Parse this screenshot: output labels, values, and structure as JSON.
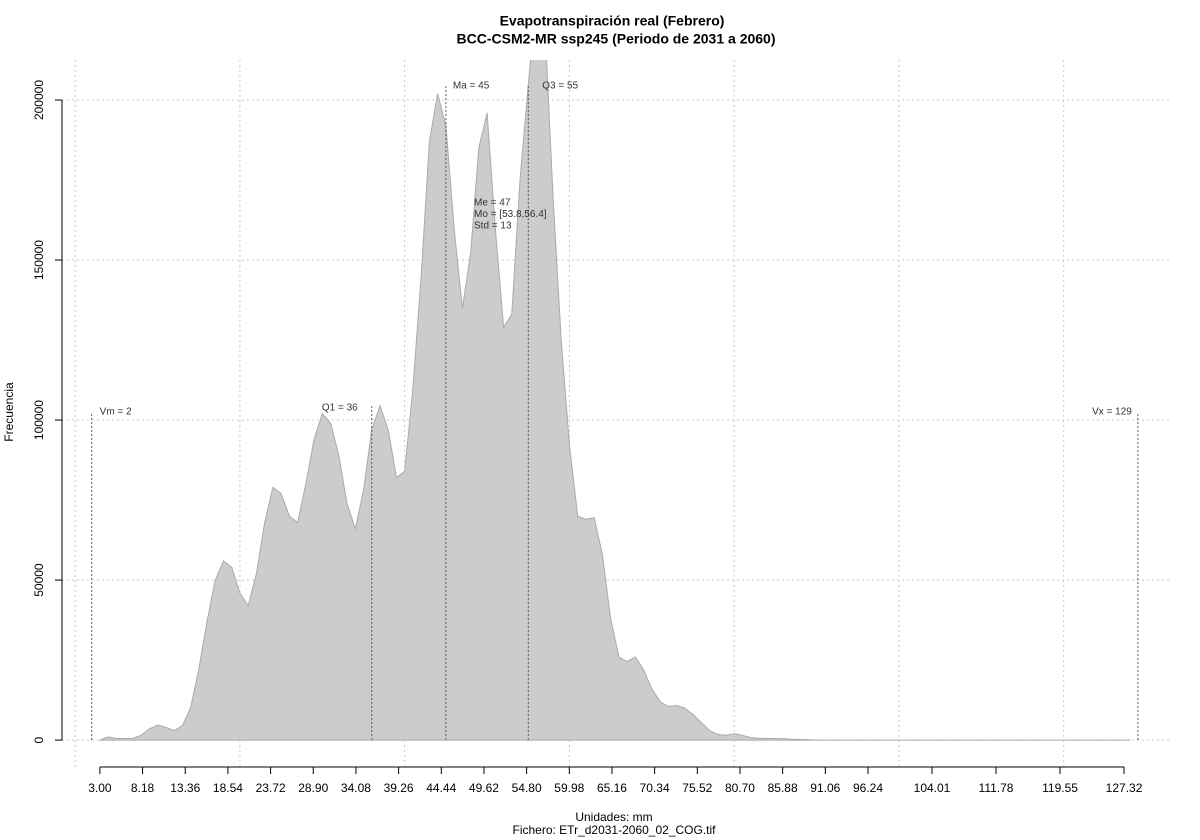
{
  "chart_data": {
    "type": "area",
    "title": "Evapotranspiración real (Febrero)",
    "subtitle": "BCC-CSM2-MR ssp245 (Periodo de 2031 a 2060)",
    "xlabel": "Unidades: mm",
    "caption": "Fichero: ETr_d2031-2060_02_COG.tif",
    "ylabel": "Frecuencia",
    "color": "#cccccc",
    "x": [
      3,
      4,
      5,
      6,
      7,
      8,
      9,
      10,
      11,
      12,
      13,
      14,
      15,
      16,
      17,
      18,
      19,
      20,
      21,
      22,
      23,
      24,
      25,
      26,
      27,
      28,
      29,
      30,
      31,
      32,
      33,
      34,
      35,
      36,
      37,
      38,
      39,
      40,
      41,
      42,
      43,
      44,
      45,
      46,
      47,
      48,
      49,
      50,
      51,
      52,
      53,
      54,
      55,
      56,
      57,
      58,
      59,
      60,
      61,
      62,
      63,
      64,
      65,
      66,
      67,
      68,
      69,
      70,
      71,
      72,
      73,
      74,
      75,
      76,
      77,
      78,
      79,
      80,
      81,
      82,
      83,
      84,
      85,
      86,
      87,
      88,
      89,
      90,
      128
    ],
    "values": [
      0,
      1000,
      500,
      500,
      600,
      1500,
      3500,
      4700,
      4000,
      3000,
      4500,
      10000,
      22000,
      37000,
      50000,
      56000,
      54000,
      46000,
      42000,
      52000,
      68000,
      79000,
      77000,
      70000,
      68000,
      80000,
      94000,
      102000,
      99000,
      89000,
      74000,
      66000,
      78000,
      97000,
      104500,
      97000,
      82000,
      84000,
      110000,
      145000,
      187000,
      202000,
      192000,
      160000,
      135000,
      152000,
      185000,
      196000,
      160000,
      129000,
      133000,
      175000,
      205000,
      232000,
      225000,
      170000,
      125000,
      92000,
      70000,
      69000,
      69500,
      58000,
      38000,
      26000,
      24500,
      26000,
      22000,
      16000,
      12000,
      10500,
      10800,
      10000,
      8000,
      5500,
      3000,
      1800,
      1500,
      2000,
      1500,
      800,
      600,
      500,
      500,
      400,
      300,
      200,
      100,
      0,
      0
    ],
    "xlim": [
      -1.6,
      132.9
    ],
    "ylim": [
      -8400,
      212500
    ],
    "xticks": [
      {
        "value": 3,
        "label": "3.00"
      },
      {
        "value": 8.18,
        "label": "8.18"
      },
      {
        "value": 13.36,
        "label": "13.36"
      },
      {
        "value": 18.54,
        "label": "18.54"
      },
      {
        "value": 23.72,
        "label": "23.72"
      },
      {
        "value": 28.9,
        "label": "28.90"
      },
      {
        "value": 34.08,
        "label": "34.08"
      },
      {
        "value": 39.26,
        "label": "39.26"
      },
      {
        "value": 44.44,
        "label": "44.44"
      },
      {
        "value": 49.62,
        "label": "49.62"
      },
      {
        "value": 54.8,
        "label": "54.80"
      },
      {
        "value": 59.98,
        "label": "59.98"
      },
      {
        "value": 65.16,
        "label": "65.16"
      },
      {
        "value": 70.34,
        "label": "70.34"
      },
      {
        "value": 75.52,
        "label": "75.52"
      },
      {
        "value": 80.7,
        "label": "80.70"
      },
      {
        "value": 85.88,
        "label": "85.88"
      },
      {
        "value": 91.06,
        "label": "91.06"
      },
      {
        "value": 96.24,
        "label": "96.24"
      },
      {
        "value": 104.01,
        "label": "104.01"
      },
      {
        "value": 111.78,
        "label": "111.78"
      },
      {
        "value": 119.55,
        "label": "119.55"
      },
      {
        "value": 127.32,
        "label": "127.32"
      }
    ],
    "yticks": [
      0,
      50000,
      100000,
      150000,
      200000
    ],
    "xgrid": [
      0,
      20,
      40,
      60,
      80,
      100,
      120
    ],
    "grid": true,
    "annotations": [
      {
        "label": "Vm = 2",
        "value": 2
      },
      {
        "label": "Q1 = 36",
        "value": 36
      },
      {
        "label": "Ma = 45",
        "value": 45
      },
      {
        "label": "Q3 = 55",
        "value": 55
      },
      {
        "label": "Vx = 129",
        "value": 129
      }
    ],
    "stats": [
      "Me = 47",
      "Mo = [53.8,56.4]",
      "Std = 13"
    ]
  }
}
